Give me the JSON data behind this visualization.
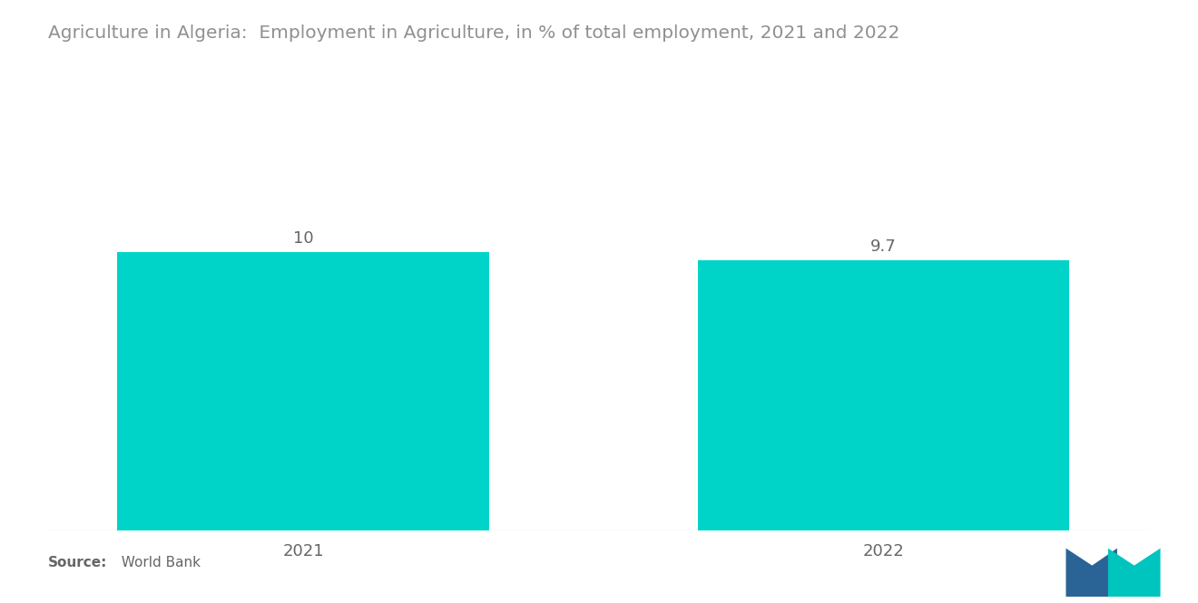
{
  "title": "Agriculture in Algeria:  Employment in Agriculture, in % of total employment, 2021 and 2022",
  "categories": [
    "2021",
    "2022"
  ],
  "values": [
    10,
    9.7
  ],
  "bar_color": "#00D4C8",
  "background_color": "#ffffff",
  "title_color": "#909090",
  "label_color": "#666666",
  "value_labels": [
    "10",
    "9.7"
  ],
  "source_bold": "Source:",
  "source_normal": "  World Bank",
  "ylim": [
    0,
    13
  ],
  "bar_positions": [
    0.22,
    0.72
  ],
  "bar_width": 0.32,
  "title_fontsize": 14.5,
  "tick_fontsize": 13,
  "value_fontsize": 13,
  "source_fontsize": 11,
  "logo_blue": "#2A6496",
  "logo_teal": "#00C4BE"
}
